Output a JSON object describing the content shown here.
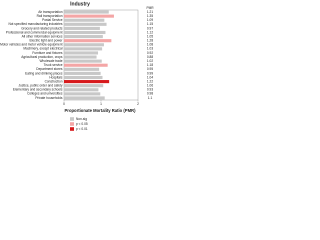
{
  "chart_data": {
    "type": "hbar",
    "title": "Industry",
    "value_header": "PMR",
    "xlabel": "Proportionate Mortality Ratio (PMR)",
    "categories": [
      "Air transportation",
      "Rail transportation",
      "Postal Service",
      "Not specified manufacturing industries",
      "Grocery and related products",
      "Professional and commercial equipment",
      "All other information services",
      "Electric light and power",
      "Motor vehicles and motor vehicle equipment",
      "Machinery, except electrical",
      "Furniture and fixtures",
      "Agricultural production, crops",
      "Wholesale trade",
      "Truck service",
      "Department stores",
      "Eating and drinking places",
      "Hospitals",
      "Construction",
      "Justice, public order and safety",
      "Elementary and secondary schools",
      "Colleges and universities",
      "Private households"
    ],
    "series": [
      {
        "name": "Non-sig",
        "color": "#c8c8c8",
        "values": [
          1.21,
          null,
          1.09,
          1.15,
          0.97,
          1.12,
          1.05,
          null,
          1.08,
          1.03,
          0.92,
          0.88,
          1.02,
          null,
          0.95,
          0.99,
          1.04,
          null,
          1.06,
          0.93,
          0.98,
          1.1
        ]
      },
      {
        "name": "p < 0.05",
        "color": "#f4a6a6",
        "values": [
          null,
          1.35,
          null,
          null,
          null,
          null,
          null,
          1.28,
          null,
          null,
          null,
          null,
          null,
          1.18,
          null,
          null,
          null,
          null,
          null,
          null,
          null,
          null
        ]
      },
      {
        "name": "p < 0.01",
        "color": "#d7191c",
        "values": [
          null,
          null,
          null,
          null,
          null,
          null,
          null,
          null,
          null,
          null,
          null,
          null,
          null,
          null,
          null,
          null,
          null,
          1.22,
          null,
          null,
          null,
          null
        ]
      }
    ],
    "xlim": [
      0,
      2
    ],
    "xticks": [
      0,
      1,
      2
    ]
  }
}
